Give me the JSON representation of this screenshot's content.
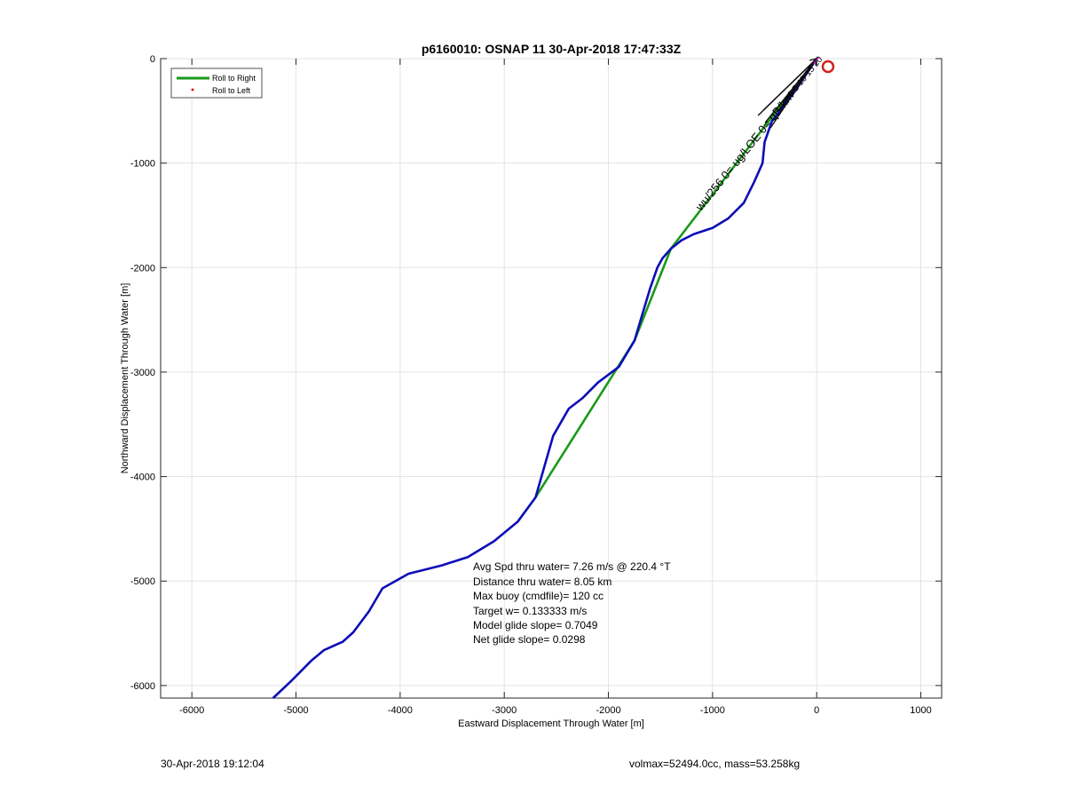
{
  "chart_data": {
    "type": "line",
    "title": "p6160010: OSNAP 11 30-Apr-2018 17:47:33Z",
    "xlabel": "Eastward Displacement Through Water [m]",
    "ylabel": "Northward Displacement Through Water [m]",
    "xlim": [
      -6300,
      1200
    ],
    "ylim": [
      -6120,
      0
    ],
    "xticks": [
      -6000,
      -5000,
      -4000,
      -3000,
      -2000,
      -1000,
      0,
      1000
    ],
    "yticks": [
      0,
      -1000,
      -2000,
      -3000,
      -4000,
      -5000,
      -6000
    ],
    "grid": true,
    "legend": {
      "placement": "top-left",
      "entries": [
        "Roll to Right",
        "Roll to Left"
      ]
    },
    "series": [
      {
        "name": "Roll to Right",
        "color": "#1a9a1a",
        "x": [
          0,
          -1400,
          -1750,
          -2700
        ],
        "y": [
          0,
          -1820,
          -2700,
          -4200
        ]
      },
      {
        "color": "#0d0db8",
        "x": [
          0,
          -200,
          -430,
          -500,
          -520,
          -600,
          -700,
          -850,
          -1000,
          -1180,
          -1300,
          -1400,
          -1480,
          -1530,
          -1600,
          -1750,
          -1900,
          -2100,
          -2250,
          -2380,
          -2530,
          -2700,
          -2870,
          -3100,
          -3350,
          -3600,
          -3920,
          -4170,
          -4300,
          -4450,
          -4550,
          -4730,
          -4850,
          -4950,
          -5050,
          -5220
        ],
        "y": [
          0,
          -300,
          -600,
          -800,
          -1000,
          -1180,
          -1380,
          -1530,
          -1620,
          -1680,
          -1740,
          -1820,
          -1910,
          -2000,
          -2200,
          -2700,
          -2950,
          -3100,
          -3250,
          -3350,
          -3610,
          -4200,
          -4430,
          -4620,
          -4770,
          -4850,
          -4930,
          -5070,
          -5290,
          -5490,
          -5580,
          -5660,
          -5760,
          -5860,
          -5960,
          -6120
        ]
      }
    ],
    "annotations": {
      "stats": [
        "Avg Spd thru water=  7.26 m/s @ 220.4 °T",
        "Distance thru water=  8.05 km",
        "Max buoy (cmdfile)= 120 cc",
        "Target w= 0.133333 m/s",
        "Model glide slope= 0.7049",
        "Net glide slope= 0.0298"
      ],
      "arrow_labels": [
        "wu/256 0= ug/LOE 0= qB/km",
        "0 5 10 15 20"
      ]
    }
  },
  "footer": {
    "left": "30-Apr-2018 19:12:04",
    "right": "volmax=52494.0cc, mass=53.258kg"
  }
}
